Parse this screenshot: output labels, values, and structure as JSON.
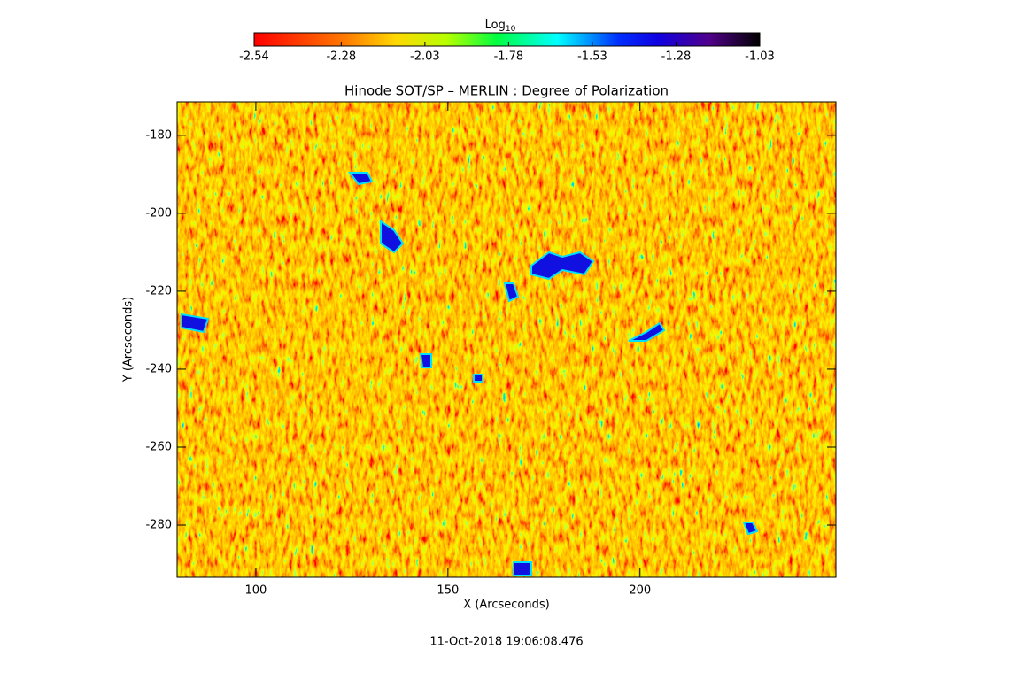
{
  "chart_data": {
    "type": "image",
    "title": "Hinode SOT/SP – MERLIN : Degree of Polarization",
    "xlabel": "X (Arcseconds)",
    "ylabel": "Y (Arcseconds)",
    "xlim": [
      79.5,
      251
    ],
    "ylim": [
      -293.4,
      -171.4
    ],
    "xticks": [
      100,
      150,
      200
    ],
    "yticks": [
      -180,
      -200,
      -220,
      -240,
      -260,
      -280
    ],
    "colorbar": {
      "label": "Log",
      "label_subscript": "10",
      "lim": [
        -2.54,
        -1.03
      ],
      "ticks": [
        -2.54,
        -2.28,
        -2.03,
        -1.78,
        -1.53,
        -1.28,
        -1.03
      ]
    },
    "footer": "11-Oct-2018 19:06:08.476"
  }
}
